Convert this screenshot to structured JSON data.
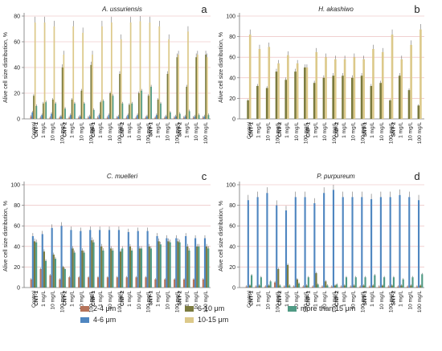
{
  "colors": {
    "2-4": "#b5735a",
    "4-6": "#4f86c0",
    "6-10": "#7a7a3e",
    "10-15": "#dcc98a",
    "15+": "#4f9a84",
    "grid": "#e8b4b4",
    "axis": "#777777"
  },
  "legend": [
    {
      "key": "2-4",
      "label": "2-4 μm"
    },
    {
      "key": "4-6",
      "label": "4-6 μm"
    },
    {
      "key": "6-10",
      "label": "6-10 μm"
    },
    {
      "key": "10-15",
      "label": "10-15 μm"
    },
    {
      "key": "15+",
      "label": "more than 15 μm"
    }
  ],
  "chart_data": [
    {
      "type": "bar",
      "title": "A. ussuriensis",
      "panel_letter": "a",
      "ylabel": "Alive cell size distribution, %",
      "ylim": [
        0,
        80
      ],
      "yticks": [
        0,
        20,
        40,
        60,
        80
      ],
      "categories": [
        "Control",
        "1 mg/L",
        "10 mg/L",
        "100 mg/L",
        "1 mg/L",
        "10 mg/L",
        "100 mg/L",
        "1 mg/L",
        "10 mg/L",
        "100 mg/L",
        "1 mg/L",
        "10 mg/L",
        "100 mg/L",
        "1 mg/L",
        "10 mg/L",
        "100 mg/L",
        "1 mg/L",
        "10 mg/L",
        "100 mg/L"
      ],
      "groups": [
        {
          "label": "CNT-1",
          "from": 1
        },
        {
          "label": "CNT-2",
          "from": 4
        },
        {
          "label": "CNF-1",
          "from": 7
        },
        {
          "label": "CNF-2",
          "from": 10
        },
        {
          "label": "SNT-1",
          "from": 13
        },
        {
          "label": "SNT-2",
          "from": 16
        }
      ],
      "series": [
        {
          "key": "2-4",
          "values": [
            2,
            1,
            1,
            1,
            1,
            1,
            1,
            1,
            1,
            1,
            1,
            1,
            1,
            1,
            1,
            1,
            1,
            1,
            1
          ]
        },
        {
          "key": "4-6",
          "values": [
            5,
            3,
            4,
            2,
            3,
            2,
            2,
            3,
            3,
            2,
            3,
            3,
            2,
            3,
            2,
            2,
            2,
            2,
            2
          ]
        },
        {
          "key": "6-10",
          "values": [
            18,
            12,
            15,
            40,
            15,
            22,
            42,
            13,
            20,
            35,
            11,
            20,
            18,
            15,
            35,
            48,
            25,
            48,
            50
          ]
        },
        {
          "key": "10-15",
          "values": [
            75,
            75,
            72,
            50,
            72,
            67,
            50,
            72,
            75,
            62,
            75,
            76,
            75,
            72,
            62,
            50,
            68,
            50,
            48
          ]
        },
        {
          "key": "15+",
          "values": [
            10,
            13,
            12,
            8,
            12,
            12,
            7,
            14,
            18,
            12,
            12,
            22,
            25,
            12,
            5,
            4,
            6,
            3,
            3
          ]
        }
      ]
    },
    {
      "type": "bar",
      "title": "H. akashiwo",
      "panel_letter": "b",
      "ylabel": "Alive cell size distribution, %",
      "ylim": [
        0,
        100
      ],
      "yticks": [
        0,
        20,
        40,
        60,
        80,
        100
      ],
      "categories": [
        "Control",
        "1 mg/L",
        "10 mg/L",
        "100 mg/L",
        "1 mg/L",
        "10 mg/L",
        "100 mg/L",
        "1 mg/L",
        "10 mg/L",
        "100 mg/L",
        "1 mg/L",
        "10 mg/L",
        "100 mg/L",
        "1 mg/L",
        "10 mg/L",
        "100 mg/L",
        "1 mg/L",
        "10 mg/L",
        "100 mg/L"
      ],
      "groups": [
        {
          "label": "CNT-1",
          "from": 1
        },
        {
          "label": "CNT-2",
          "from": 4
        },
        {
          "label": "CNF-1",
          "from": 7
        },
        {
          "label": "CNF-2",
          "from": 10
        },
        {
          "label": "SNT-1",
          "from": 13
        },
        {
          "label": "SNT-2",
          "from": 16
        }
      ],
      "series": [
        {
          "key": "6-10",
          "values": [
            18,
            32,
            30,
            46,
            38,
            46,
            50,
            35,
            40,
            42,
            42,
            40,
            42,
            32,
            35,
            18,
            42,
            28,
            13
          ]
        },
        {
          "key": "10-15",
          "values": [
            82,
            68,
            70,
            54,
            62,
            54,
            50,
            65,
            60,
            58,
            58,
            60,
            58,
            68,
            65,
            82,
            58,
            72,
            87
          ]
        }
      ]
    },
    {
      "type": "bar",
      "title": "C. muelleri",
      "panel_letter": "c",
      "ylabel": "Alive cell size distribution, %",
      "ylim": [
        0,
        100
      ],
      "yticks": [
        0,
        20,
        40,
        60,
        80,
        100
      ],
      "categories": [
        "Control",
        "1 mg/L",
        "10 mg/L",
        "100 mg/L",
        "1 mg/L",
        "10 mg/L",
        "100 mg/L",
        "1 mg/L",
        "10 mg/L",
        "100 mg/L",
        "1 mg/L",
        "10 mg/L",
        "100 mg/L",
        "1 mg/L",
        "10 mg/L",
        "100 mg/L",
        "1 mg/L",
        "10 mg/L",
        "100 mg/L"
      ],
      "groups": [
        {
          "label": "CNT-1",
          "from": 1
        },
        {
          "label": "CNT-2",
          "from": 4
        },
        {
          "label": "CNF-1",
          "from": 7
        },
        {
          "label": "CNF-2",
          "from": 10
        },
        {
          "label": "SNT-1",
          "from": 13
        },
        {
          "label": "SNT-2",
          "from": 16
        }
      ],
      "series": [
        {
          "key": "2-4",
          "values": [
            8,
            18,
            12,
            8,
            10,
            10,
            10,
            10,
            10,
            10,
            10,
            10,
            10,
            8,
            8,
            8,
            8,
            8,
            8
          ]
        },
        {
          "key": "4-6",
          "values": [
            50,
            52,
            58,
            60,
            56,
            55,
            56,
            56,
            56,
            56,
            54,
            55,
            55,
            50,
            48,
            48,
            50,
            48,
            48
          ]
        },
        {
          "key": "6-10",
          "values": [
            45,
            35,
            32,
            20,
            38,
            36,
            46,
            40,
            38,
            35,
            40,
            38,
            40,
            45,
            45,
            45,
            40,
            40,
            40
          ]
        },
        {
          "key": "15+",
          "values": [
            44,
            26,
            28,
            18,
            34,
            34,
            44,
            36,
            36,
            38,
            36,
            38,
            38,
            42,
            44,
            44,
            36,
            40,
            38
          ]
        }
      ]
    },
    {
      "type": "bar",
      "title": "P. purpureum",
      "panel_letter": "d",
      "ylabel": "Alive cell size distribution, %",
      "ylim": [
        0,
        100
      ],
      "yticks": [
        0,
        20,
        40,
        60,
        80,
        100
      ],
      "categories": [
        "Control",
        "1 mg/L",
        "10 mg/L",
        "100 mg/L",
        "1 mg/L",
        "10 mg/L",
        "100 mg/L",
        "1 mg/L",
        "10 mg/L",
        "100 mg/L",
        "1 mg/L",
        "10 mg/L",
        "100 mg/L",
        "1 mg/L",
        "10 mg/L",
        "100 mg/L",
        "1 mg/L",
        "10 mg/L",
        "100 mg/L"
      ],
      "groups": [
        {
          "label": "CNT-1",
          "from": 1
        },
        {
          "label": "CNT-2",
          "from": 4
        },
        {
          "label": "CNF-1",
          "from": 7
        },
        {
          "label": "CNF-2",
          "from": 10
        },
        {
          "label": "SNT-1",
          "from": 13
        },
        {
          "label": "SNT-2",
          "from": 16
        }
      ],
      "series": [
        {
          "key": "2-4",
          "values": [
            1,
            1,
            1,
            5,
            1,
            1,
            1,
            1,
            1,
            1,
            1,
            1,
            1,
            1,
            1,
            1,
            1,
            1,
            1
          ]
        },
        {
          "key": "4-6",
          "values": [
            85,
            88,
            92,
            80,
            75,
            88,
            88,
            82,
            92,
            95,
            88,
            88,
            88,
            86,
            88,
            88,
            90,
            88,
            85
          ]
        },
        {
          "key": "6-10",
          "values": [
            2,
            2,
            2,
            18,
            22,
            8,
            2,
            14,
            6,
            2,
            2,
            2,
            2,
            2,
            2,
            2,
            2,
            2,
            2
          ]
        },
        {
          "key": "15+",
          "values": [
            12,
            10,
            6,
            2,
            2,
            4,
            10,
            3,
            2,
            3,
            10,
            10,
            10,
            12,
            10,
            10,
            8,
            10,
            13
          ]
        }
      ]
    }
  ]
}
